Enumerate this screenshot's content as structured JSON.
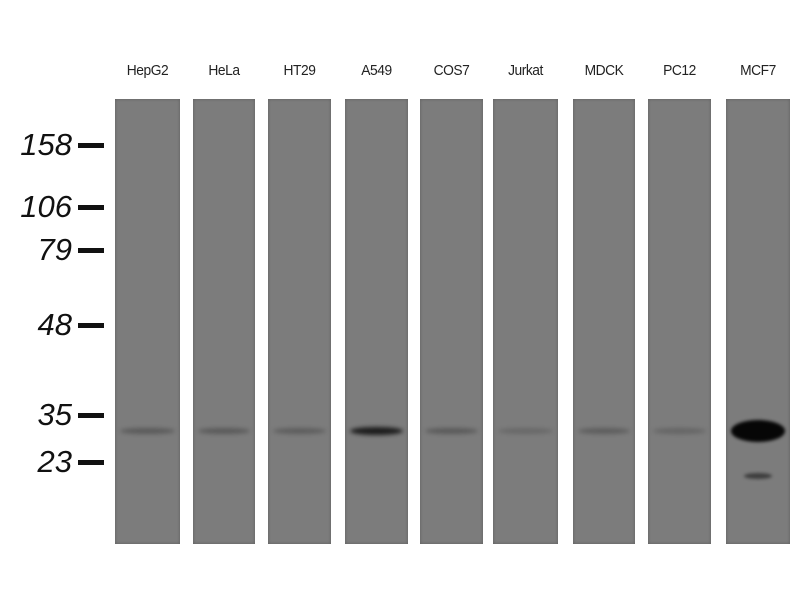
{
  "lanes": [
    {
      "label": "HepG2",
      "band_intensity": 0.25,
      "secondary_band": 0
    },
    {
      "label": "HeLa",
      "band_intensity": 0.25,
      "secondary_band": 0
    },
    {
      "label": "HT29",
      "band_intensity": 0.22,
      "secondary_band": 0
    },
    {
      "label": "A549",
      "band_intensity": 0.8,
      "secondary_band": 0
    },
    {
      "label": "COS7",
      "band_intensity": 0.25,
      "secondary_band": 0
    },
    {
      "label": "Jurkat",
      "band_intensity": 0.12,
      "secondary_band": 0
    },
    {
      "label": "MDCK",
      "band_intensity": 0.22,
      "secondary_band": 0
    },
    {
      "label": "PC12",
      "band_intensity": 0.15,
      "secondary_band": 0
    },
    {
      "label": "MCF7",
      "band_intensity": 1.0,
      "secondary_band": 0.5
    }
  ],
  "markers": [
    {
      "label": "158",
      "kda": 158
    },
    {
      "label": "106",
      "kda": 106
    },
    {
      "label": "79",
      "kda": 79
    },
    {
      "label": "48",
      "kda": 48
    },
    {
      "label": "35",
      "kda": 35
    },
    {
      "label": "23",
      "kda": 23
    }
  ],
  "colors": {
    "membrane": "#7c7c7c",
    "band": "#000000",
    "background": "#ffffff"
  }
}
